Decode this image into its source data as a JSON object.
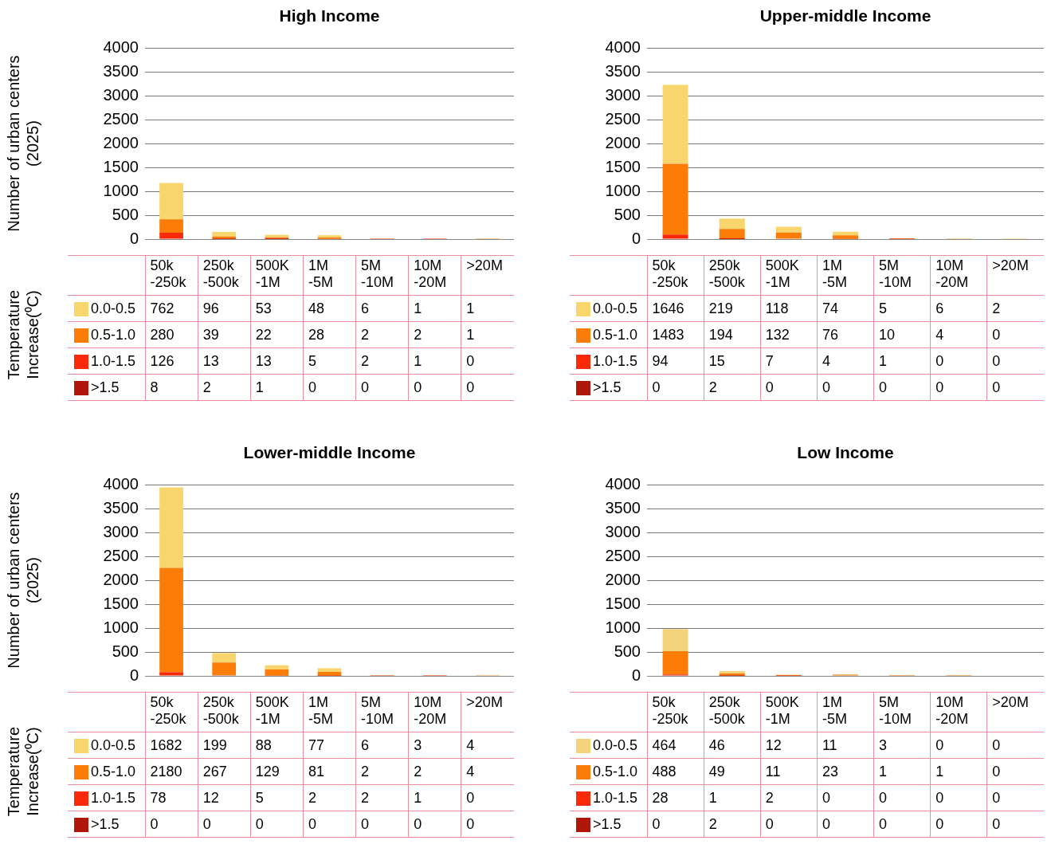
{
  "chart_data": [
    {
      "type": "bar",
      "title": "High Income",
      "ylabel": "Number of urban centers (2025)",
      "legend_title": "Temperature Increase(⁰C)",
      "categories": [
        "50k\n-250k",
        "250k\n-500k",
        "500K\n-1M",
        "1M\n-5M",
        "5M\n-10M",
        "10M\n-20M",
        ">20M"
      ],
      "stacked": true,
      "ylim": [
        0,
        4000
      ],
      "yticks": [
        0,
        500,
        1000,
        1500,
        2000,
        2500,
        3000,
        3500,
        4000
      ],
      "grid": "y",
      "legend": "bottom",
      "data_labels": true,
      "tick_labels": "y",
      "series": [
        {
          "name": ">1.5",
          "color": "#b0170a",
          "values": [
            8,
            2,
            1,
            0,
            0,
            0,
            0
          ]
        },
        {
          "name": "1.0-1.5",
          "color": "#f9290a",
          "values": [
            126,
            13,
            13,
            5,
            2,
            1,
            0
          ]
        },
        {
          "name": "0.5-1.0",
          "color": "#fb7d07",
          "values": [
            280,
            39,
            22,
            28,
            2,
            2,
            1
          ]
        },
        {
          "name": "0.0-0.5",
          "color": "#f9d56e",
          "values": [
            762,
            96,
            53,
            48,
            6,
            1,
            1
          ]
        }
      ]
    },
    {
      "type": "bar",
      "title": "Upper-middle Income",
      "categories": [
        "50k\n-250k",
        "250k\n-500k",
        "500K\n-1M",
        "1M\n-5M",
        "5M\n-10M",
        "10M\n-20M",
        ">20M"
      ],
      "stacked": true,
      "ylim": [
        0,
        4000
      ],
      "yticks": [
        0,
        500,
        1000,
        1500,
        2000,
        2500,
        3000,
        3500,
        4000
      ],
      "grid": "y",
      "legend": "bottom",
      "data_labels": true,
      "tick_labels": "y",
      "series": [
        {
          "name": ">1.5",
          "color": "#b0170a",
          "values": [
            0,
            2,
            0,
            0,
            0,
            0,
            0
          ]
        },
        {
          "name": "1.0-1.5",
          "color": "#f9290a",
          "values": [
            94,
            15,
            7,
            4,
            1,
            0,
            0
          ]
        },
        {
          "name": "0.5-1.0",
          "color": "#fb7d07",
          "values": [
            1483,
            194,
            132,
            76,
            10,
            4,
            0
          ]
        },
        {
          "name": "0.0-0.5",
          "color": "#f9d56e",
          "values": [
            1646,
            219,
            118,
            74,
            5,
            6,
            2
          ]
        }
      ]
    },
    {
      "type": "bar",
      "title": "Lower-middle Income",
      "ylabel": "Number of urban centers (2025)",
      "legend_title": "Temperature Increase(⁰C)",
      "categories": [
        "50k\n-250k",
        "250k\n-500k",
        "500K\n-1M",
        "1M\n-5M",
        "5M\n-10M",
        "10M\n-20M",
        ">20M"
      ],
      "stacked": true,
      "ylim": [
        0,
        4000
      ],
      "yticks": [
        0,
        500,
        1000,
        1500,
        2000,
        2500,
        3000,
        3500,
        4000
      ],
      "grid": "y",
      "legend": "bottom",
      "data_labels": true,
      "tick_labels": "y",
      "series": [
        {
          "name": ">1.5",
          "color": "#b0170a",
          "values": [
            0,
            0,
            0,
            0,
            0,
            0,
            0
          ]
        },
        {
          "name": "1.0-1.5",
          "color": "#f9290a",
          "values": [
            78,
            12,
            5,
            2,
            2,
            1,
            0
          ]
        },
        {
          "name": "0.5-1.0",
          "color": "#fb7d07",
          "values": [
            2180,
            267,
            129,
            81,
            2,
            2,
            4
          ]
        },
        {
          "name": "0.0-0.5",
          "color": "#f9d56e",
          "values": [
            1682,
            199,
            88,
            77,
            6,
            3,
            4
          ]
        }
      ]
    },
    {
      "type": "bar",
      "title": "Low Income",
      "categories": [
        "50k\n-250k",
        "250k\n-500k",
        "500K\n-1M",
        "1M\n-5M",
        "5M\n-10M",
        "10M\n-20M",
        ">20M"
      ],
      "stacked": true,
      "ylim": [
        0,
        4000
      ],
      "yticks": [
        0,
        500,
        1000,
        1500,
        2000,
        2500,
        3000,
        3500,
        4000
      ],
      "grid": "y",
      "legend": "bottom",
      "data_labels": true,
      "tick_labels": "y",
      "series": [
        {
          "name": ">1.5",
          "color": "#b0170a",
          "values": [
            0,
            2,
            0,
            0,
            0,
            0,
            0
          ]
        },
        {
          "name": "1.0-1.5",
          "color": "#f9290a",
          "values": [
            28,
            1,
            2,
            0,
            0,
            0,
            0
          ]
        },
        {
          "name": "0.5-1.0",
          "color": "#fb7d07",
          "values": [
            488,
            49,
            11,
            23,
            1,
            1,
            0
          ]
        },
        {
          "name": "0.0-0.5",
          "color": "#f3d37b",
          "values": [
            464,
            46,
            12,
            11,
            3,
            0,
            0
          ]
        }
      ]
    }
  ]
}
